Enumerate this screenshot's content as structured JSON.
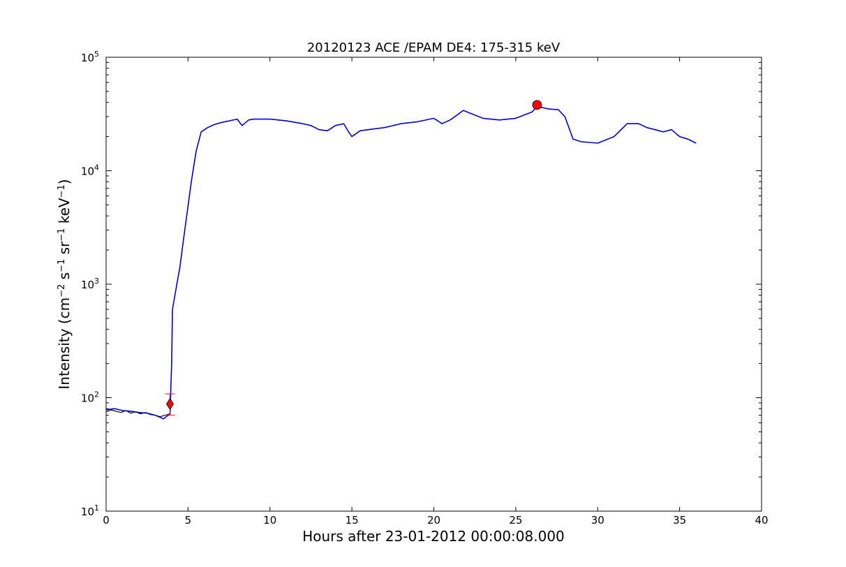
{
  "chart_data": {
    "type": "line",
    "title": "20120123 ACE /EPAM DE4: 175-315 keV",
    "xlabel": "Hours after 23-01-2012 00:00:08.000",
    "ylabel_parts": [
      "Intensity (cm",
      "−2",
      " s",
      "−1",
      " sr",
      "−1",
      " keV",
      "−1",
      ")"
    ],
    "xlim": [
      0,
      40
    ],
    "ylim": [
      10,
      100000
    ],
    "yscale": "log",
    "grid": false,
    "x_ticks": [
      0,
      5,
      10,
      15,
      20,
      25,
      30,
      35,
      40
    ],
    "y_ticks": [
      {
        "value": 10,
        "base": "10",
        "exp": "1"
      },
      {
        "value": 100,
        "base": "10",
        "exp": "2"
      },
      {
        "value": 1000,
        "base": "10",
        "exp": "3"
      },
      {
        "value": 10000,
        "base": "10",
        "exp": "4"
      },
      {
        "value": 100000,
        "base": "10",
        "exp": "5"
      }
    ],
    "series": [
      {
        "role": "raw",
        "color": "#000000",
        "x": [
          0,
          0.3,
          0.6,
          0.9,
          1.2,
          1.5,
          1.8,
          2.1,
          2.4,
          2.7,
          3.0,
          3.3,
          3.6,
          3.9
        ],
        "y": [
          75,
          78,
          76,
          74,
          77,
          73,
          75,
          72,
          74,
          71,
          70,
          68,
          70,
          72
        ]
      },
      {
        "role": "smoothed",
        "color": "#0000cc",
        "x": [
          0,
          0.5,
          1.0,
          1.5,
          2.0,
          2.5,
          3.0,
          3.5,
          3.9,
          4.0,
          4.05,
          4.2,
          4.5,
          4.8,
          5.2,
          5.5,
          5.8,
          6.2,
          6.6,
          7.0,
          8.0,
          8.3,
          8.7,
          9.0,
          10.0,
          11.0,
          12.0,
          12.5,
          13.0,
          13.5,
          14.0,
          14.5,
          14.8,
          15.0,
          15.5,
          16.0,
          17.0,
          18.0,
          19.0,
          20.0,
          20.5,
          21.0,
          21.8,
          22.5,
          23.0,
          24.0,
          25.0,
          26.0,
          26.3,
          27.0,
          27.6,
          28.0,
          28.5,
          29.0,
          30.0,
          31.0,
          31.8,
          32.5,
          33.0,
          33.5,
          34.0,
          34.5,
          35.0,
          35.5,
          36.0
        ],
        "y": [
          78,
          80,
          77,
          76,
          74,
          73,
          70,
          65,
          72,
          200,
          600,
          800,
          1400,
          3000,
          8000,
          15000,
          22000,
          24000,
          25500,
          26500,
          28500,
          25000,
          28000,
          28500,
          28500,
          27500,
          26000,
          25000,
          23000,
          22500,
          25000,
          26000,
          22000,
          20000,
          22500,
          23000,
          24000,
          26000,
          27000,
          29000,
          26000,
          28000,
          34000,
          31000,
          29000,
          28000,
          29000,
          33000,
          37000,
          35000,
          34500,
          30000,
          19000,
          18000,
          17500,
          20000,
          26000,
          26000,
          24000,
          23000,
          22000,
          23000,
          20000,
          19000,
          17500
        ]
      }
    ],
    "markers": [
      {
        "shape": "diamond",
        "color": "#ff0000",
        "x": 3.9,
        "y": 88,
        "error_low": 70,
        "error_high": 108
      },
      {
        "shape": "circle",
        "color": "#ff0000",
        "x": 26.3,
        "y": 38000
      }
    ]
  }
}
